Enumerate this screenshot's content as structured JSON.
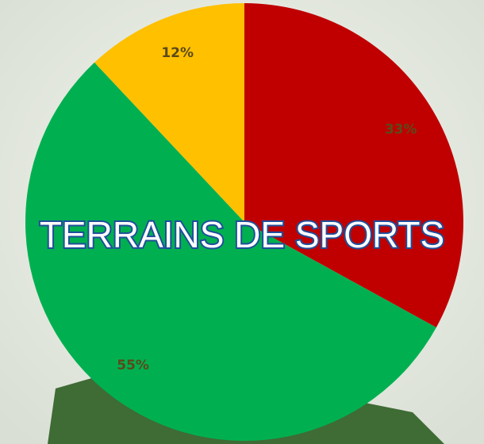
{
  "chart_data": {
    "type": "pie",
    "title": "TERRAINS DE SPORTS",
    "categories": [
      "",
      "",
      ""
    ],
    "values": [
      33,
      55,
      12
    ],
    "value_labels": [
      "33%",
      "55%",
      "12%"
    ],
    "colors": [
      "#c00000",
      "#00b050",
      "#ffc000"
    ]
  }
}
